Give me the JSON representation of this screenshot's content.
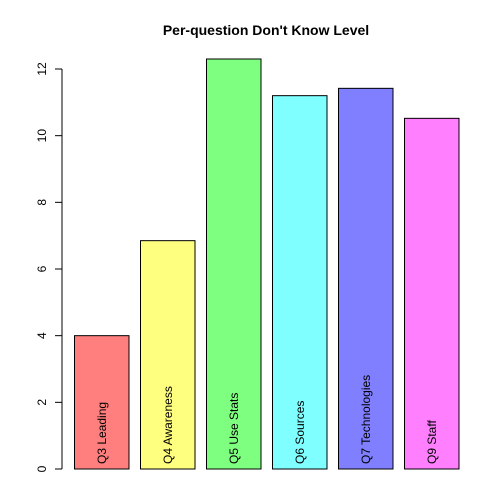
{
  "chart_data": {
    "type": "bar",
    "title": "Per-question Don't Know Level",
    "xlabel": "",
    "ylabel": "",
    "ylim": [
      0,
      12.9
    ],
    "yticks": [
      0,
      2,
      4,
      6,
      8,
      10,
      12
    ],
    "categories": [
      "Q3 Leading",
      "Q4 Awareness",
      "Q5 Use Stats",
      "Q6 Sources",
      "Q7 Technologies",
      "Q9 Staff"
    ],
    "values": [
      4.0,
      6.85,
      12.3,
      11.2,
      11.42,
      10.52
    ],
    "colors": [
      "#ff7f7f",
      "#ffff7f",
      "#7fff7f",
      "#7fffff",
      "#7f7fff",
      "#ff7fff"
    ],
    "grid": false,
    "legend": "none"
  }
}
